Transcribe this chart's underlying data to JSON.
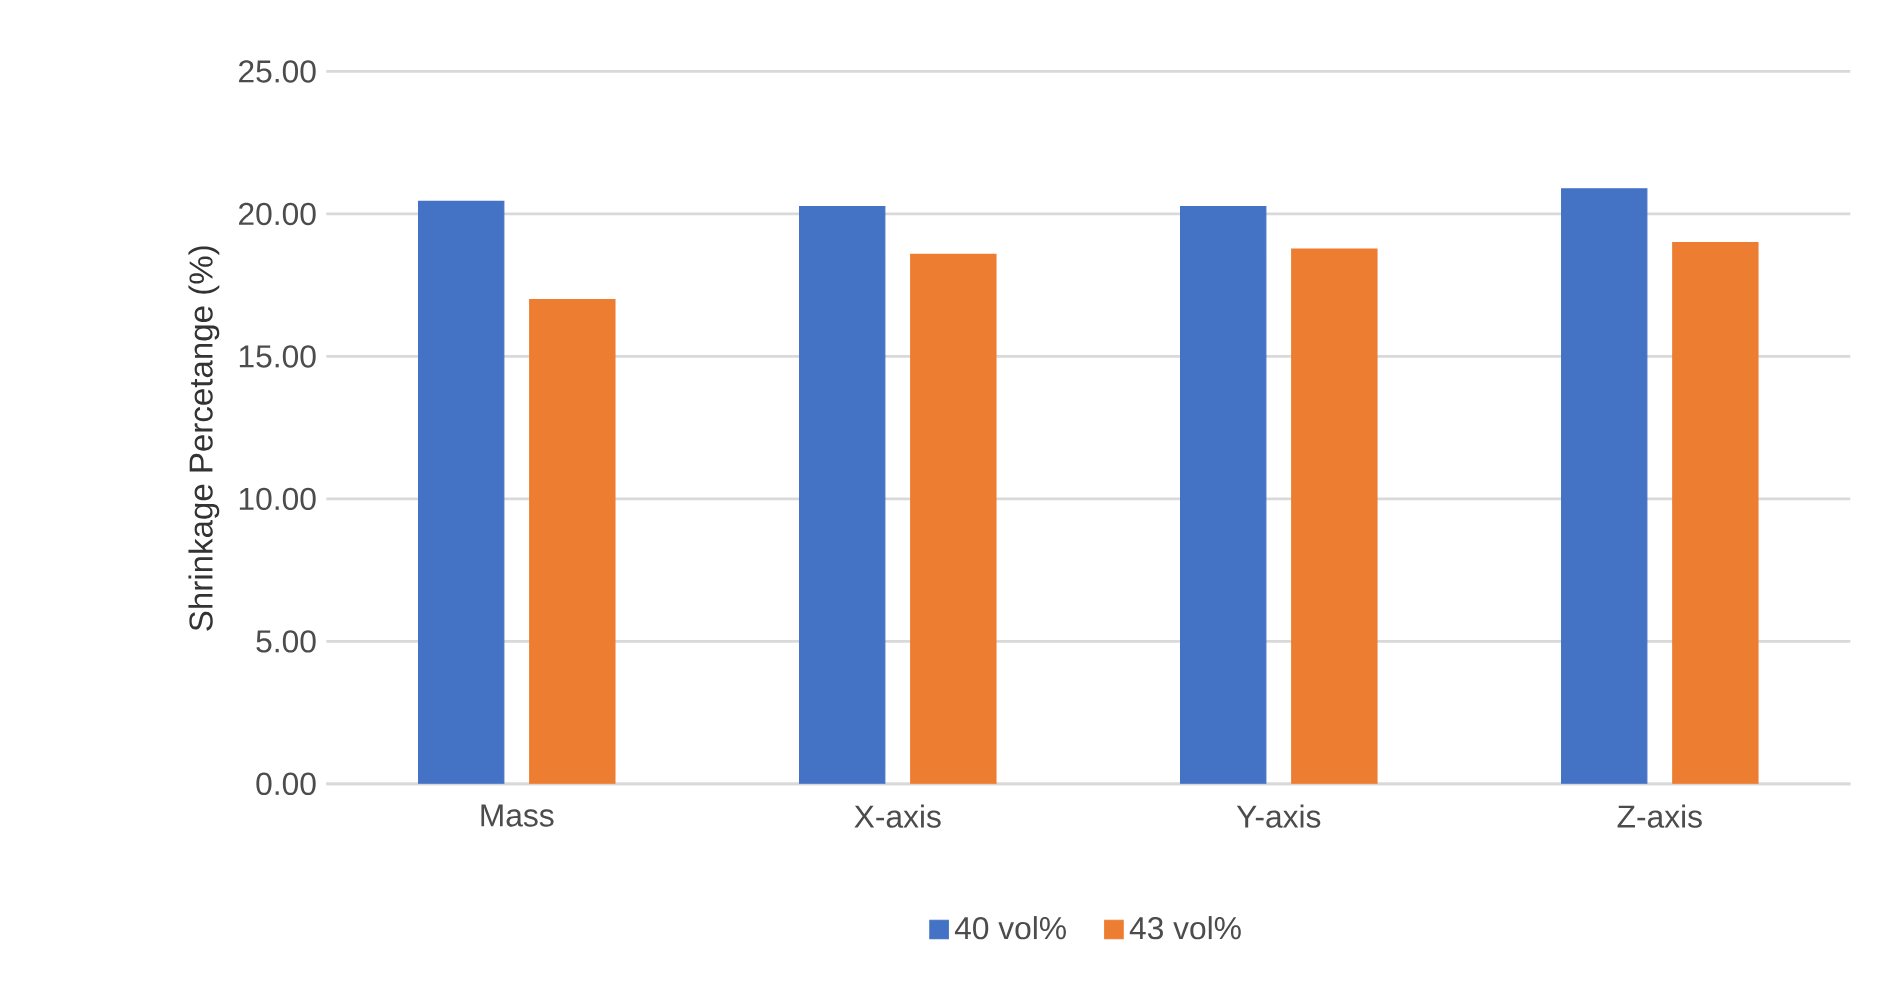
{
  "chart_data": {
    "type": "bar",
    "ylabel": "Shrinkage Percetange (%)",
    "categories": [
      "Mass",
      "X-axis",
      "Y-axis",
      "Z-axis"
    ],
    "series": [
      {
        "name": "40 vol%",
        "color": "#4472c4",
        "values": [
          20.44,
          20.26,
          20.26,
          20.88
        ]
      },
      {
        "name": "43 vol%",
        "color": "#ed7d31",
        "values": [
          17.0,
          18.58,
          18.77,
          19.0
        ]
      }
    ],
    "ylim": [
      0,
      25
    ],
    "yticks": [
      {
        "value": 0,
        "label": "0.00"
      },
      {
        "value": 5,
        "label": "5.00"
      },
      {
        "value": 10,
        "label": "10.00"
      },
      {
        "value": 15,
        "label": "15.00"
      },
      {
        "value": 20,
        "label": "20.00"
      },
      {
        "value": 25,
        "label": "25.00"
      }
    ],
    "grid": "y",
    "legend": "bottom"
  }
}
